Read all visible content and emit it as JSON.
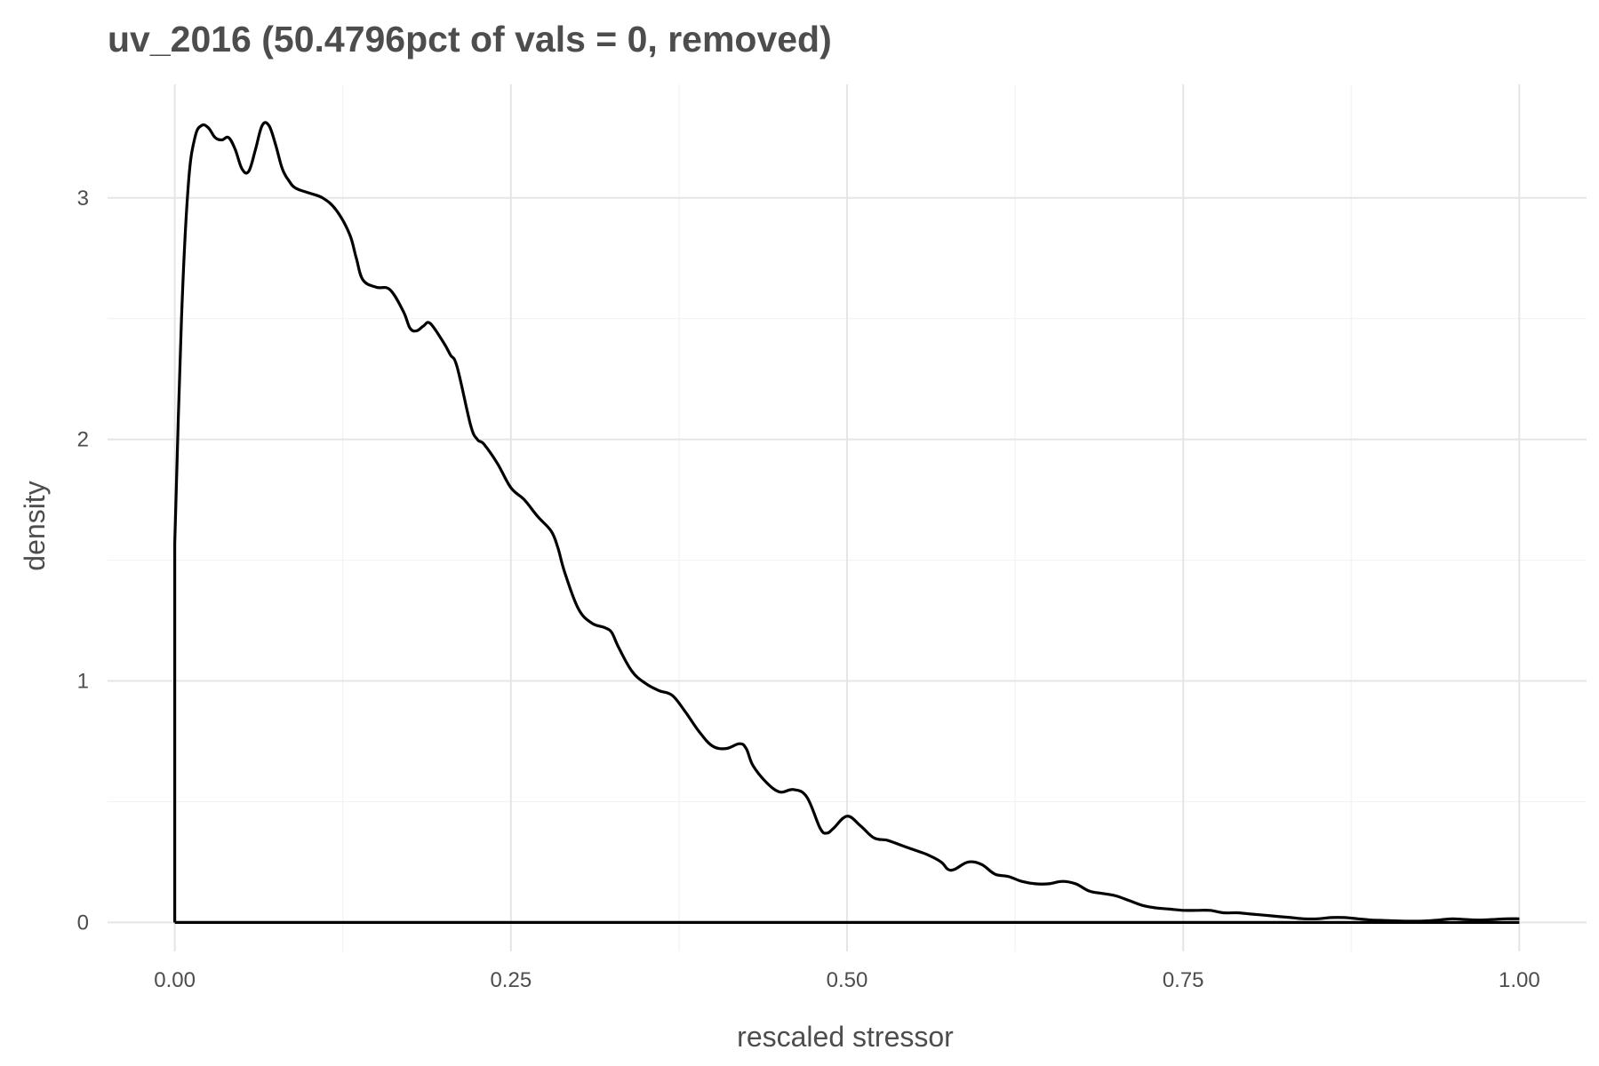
{
  "chart_data": {
    "type": "line",
    "title": "uv_2016 (50.4796pct of vals = 0, removed)",
    "xlabel": "rescaled stressor",
    "ylabel": "density",
    "xlim": [
      -0.05,
      1.05
    ],
    "ylim": [
      -0.12,
      3.47
    ],
    "x_ticks": [
      0.0,
      0.25,
      0.5,
      0.75,
      1.0
    ],
    "x_tick_labels": [
      "0.00",
      "0.25",
      "0.50",
      "0.75",
      "1.00"
    ],
    "y_ticks": [
      0,
      1,
      2,
      3
    ],
    "y_tick_labels": [
      "0",
      "1",
      "2",
      "3"
    ],
    "grid": true,
    "legend": "none",
    "series": [
      {
        "color": "#000000",
        "x": [
          0.0,
          0.0,
          0.005,
          0.01,
          0.015,
          0.02,
          0.025,
          0.03,
          0.035,
          0.04,
          0.045,
          0.05,
          0.055,
          0.06,
          0.065,
          0.07,
          0.075,
          0.08,
          0.085,
          0.09,
          0.1,
          0.11,
          0.12,
          0.13,
          0.135,
          0.14,
          0.15,
          0.16,
          0.17,
          0.175,
          0.18,
          0.185,
          0.19,
          0.2,
          0.205,
          0.21,
          0.22,
          0.225,
          0.23,
          0.24,
          0.25,
          0.26,
          0.27,
          0.28,
          0.285,
          0.29,
          0.3,
          0.31,
          0.32,
          0.325,
          0.33,
          0.34,
          0.35,
          0.36,
          0.37,
          0.38,
          0.39,
          0.4,
          0.41,
          0.42,
          0.425,
          0.43,
          0.44,
          0.45,
          0.46,
          0.47,
          0.48,
          0.485,
          0.49,
          0.5,
          0.51,
          0.52,
          0.53,
          0.54,
          0.55,
          0.56,
          0.57,
          0.575,
          0.58,
          0.59,
          0.6,
          0.61,
          0.62,
          0.63,
          0.64,
          0.65,
          0.66,
          0.67,
          0.68,
          0.69,
          0.7,
          0.71,
          0.72,
          0.73,
          0.74,
          0.75,
          0.76,
          0.77,
          0.78,
          0.79,
          0.8,
          0.81,
          0.82,
          0.83,
          0.84,
          0.85,
          0.86,
          0.87,
          0.88,
          0.89,
          0.9,
          0.91,
          0.92,
          0.93,
          0.94,
          0.95,
          0.96,
          0.97,
          0.98,
          0.99,
          1.0
        ],
        "y": [
          0.0,
          1.57,
          2.5,
          3.05,
          3.25,
          3.3,
          3.29,
          3.25,
          3.24,
          3.25,
          3.2,
          3.12,
          3.11,
          3.2,
          3.3,
          3.3,
          3.22,
          3.12,
          3.07,
          3.04,
          3.02,
          3.0,
          2.95,
          2.85,
          2.75,
          2.66,
          2.63,
          2.62,
          2.53,
          2.46,
          2.45,
          2.47,
          2.48,
          2.4,
          2.35,
          2.3,
          2.06,
          2.0,
          1.98,
          1.9,
          1.8,
          1.75,
          1.68,
          1.62,
          1.55,
          1.45,
          1.3,
          1.24,
          1.22,
          1.2,
          1.14,
          1.04,
          0.99,
          0.96,
          0.94,
          0.87,
          0.79,
          0.73,
          0.72,
          0.74,
          0.72,
          0.65,
          0.58,
          0.54,
          0.55,
          0.52,
          0.39,
          0.37,
          0.39,
          0.44,
          0.4,
          0.35,
          0.34,
          0.32,
          0.3,
          0.28,
          0.25,
          0.22,
          0.22,
          0.25,
          0.24,
          0.2,
          0.19,
          0.17,
          0.16,
          0.16,
          0.17,
          0.16,
          0.13,
          0.12,
          0.11,
          0.09,
          0.07,
          0.06,
          0.055,
          0.05,
          0.05,
          0.05,
          0.04,
          0.04,
          0.035,
          0.03,
          0.025,
          0.02,
          0.015,
          0.015,
          0.02,
          0.02,
          0.015,
          0.01,
          0.008,
          0.006,
          0.005,
          0.006,
          0.01,
          0.015,
          0.012,
          0.01,
          0.012,
          0.015,
          0.015
        ]
      }
    ]
  }
}
